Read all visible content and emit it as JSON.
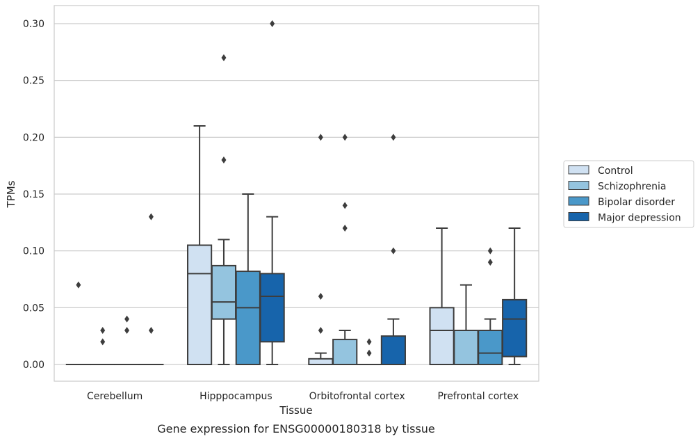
{
  "chart_data": {
    "type": "box",
    "xlabel": "Tissue",
    "ylabel": "TPMs",
    "caption": "Gene expression for ENSG00000180318 by tissue",
    "ylim": [
      -0.015,
      0.315
    ],
    "yticks": [
      "0.00",
      "0.05",
      "0.10",
      "0.15",
      "0.20",
      "0.25",
      "0.30"
    ],
    "grid": true,
    "legend_position": "right",
    "categories": [
      "Cerebellum",
      "Hipppocampus",
      "Orbitofrontal cortex",
      "Prefrontal cortex"
    ],
    "series": [
      {
        "name": "Control",
        "color": "#d0e1f2",
        "boxes": [
          {
            "min": 0,
            "q1": 0,
            "median": 0,
            "q3": 0,
            "max": 0,
            "outliers": [
              0.07
            ]
          },
          {
            "min": 0,
            "q1": 0,
            "median": 0.08,
            "q3": 0.105,
            "max": 0.21,
            "outliers": []
          },
          {
            "min": 0,
            "q1": 0,
            "median": 0,
            "q3": 0.005,
            "max": 0.01,
            "outliers": [
              0.03,
              0.06,
              0.2
            ]
          },
          {
            "min": 0,
            "q1": 0,
            "median": 0.03,
            "q3": 0.05,
            "max": 0.12,
            "outliers": []
          }
        ]
      },
      {
        "name": "Schizophrenia",
        "color": "#94c4df",
        "boxes": [
          {
            "min": 0,
            "q1": 0,
            "median": 0,
            "q3": 0,
            "max": 0,
            "outliers": [
              0.02,
              0.03
            ]
          },
          {
            "min": 0,
            "q1": 0.04,
            "median": 0.055,
            "q3": 0.087,
            "max": 0.11,
            "outliers": [
              0.18,
              0.27
            ]
          },
          {
            "min": 0,
            "q1": 0,
            "median": 0,
            "q3": 0.022,
            "max": 0.03,
            "outliers": [
              0.12,
              0.14,
              0.2
            ]
          },
          {
            "min": 0,
            "q1": 0,
            "median": 0.03,
            "q3": 0.03,
            "max": 0.07,
            "outliers": []
          }
        ]
      },
      {
        "name": "Bipolar disorder",
        "color": "#4a98c9",
        "boxes": [
          {
            "min": 0,
            "q1": 0,
            "median": 0,
            "q3": 0,
            "max": 0,
            "outliers": [
              0.03,
              0.04
            ]
          },
          {
            "min": 0,
            "q1": 0,
            "median": 0.05,
            "q3": 0.082,
            "max": 0.15,
            "outliers": []
          },
          {
            "min": 0,
            "q1": 0,
            "median": 0,
            "q3": 0,
            "max": 0,
            "outliers": [
              0.01,
              0.02
            ]
          },
          {
            "min": 0,
            "q1": 0,
            "median": 0.01,
            "q3": 0.03,
            "max": 0.04,
            "outliers": [
              0.09,
              0.1
            ]
          }
        ]
      },
      {
        "name": "Major depression",
        "color": "#1764ab",
        "boxes": [
          {
            "min": 0,
            "q1": 0,
            "median": 0,
            "q3": 0,
            "max": 0,
            "outliers": [
              0.03,
              0.13
            ]
          },
          {
            "min": 0,
            "q1": 0.02,
            "median": 0.06,
            "q3": 0.08,
            "max": 0.13,
            "outliers": [
              0.3
            ]
          },
          {
            "min": 0,
            "q1": 0,
            "median": 0,
            "q3": 0.025,
            "max": 0.04,
            "outliers": [
              0.1,
              0.2
            ]
          },
          {
            "min": 0,
            "q1": 0.007,
            "median": 0.04,
            "q3": 0.057,
            "max": 0.12,
            "outliers": []
          }
        ]
      }
    ]
  }
}
